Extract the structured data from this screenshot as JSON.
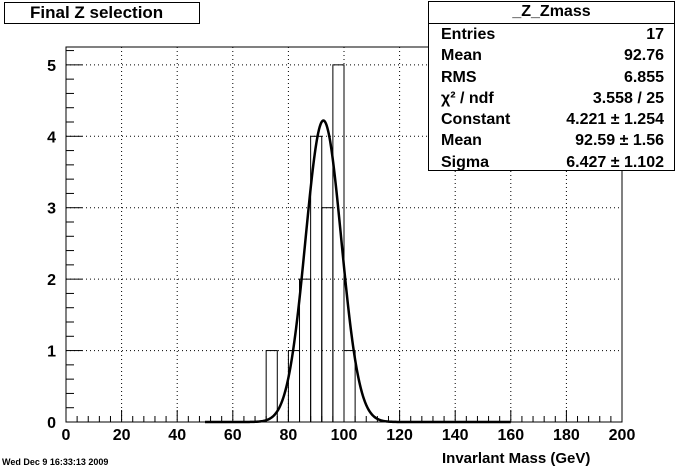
{
  "title_box": {
    "text": "Final Z selection"
  },
  "stats": {
    "title": "_Z_Zmass",
    "rows": [
      {
        "label": "Entries",
        "value": "17"
      },
      {
        "label": "Mean",
        "value": "92.76"
      },
      {
        "label": "RMS",
        "value": "6.855"
      },
      {
        "label": "χ² / ndf",
        "value": "3.558 / 25"
      },
      {
        "label": "Constant",
        "value": "4.221 ± 1.254"
      },
      {
        "label": "Mean",
        "value": "92.59 ± 1.56"
      },
      {
        "label": "Sigma",
        "value": "6.427 ± 1.102"
      }
    ]
  },
  "footer": {
    "date": "Wed Dec  9 16:33:13 2009"
  },
  "chart_data": {
    "type": "bar",
    "style": "histogram",
    "title": "Final Z selection",
    "xlabel": "Invarlant Mass (GeV)",
    "ylabel": "",
    "xlim": [
      0,
      200
    ],
    "ylim": [
      0,
      5.25
    ],
    "xticks": [
      0,
      20,
      40,
      60,
      80,
      100,
      120,
      140,
      160,
      180,
      200
    ],
    "yticks": [
      0,
      1,
      2,
      3,
      4,
      5
    ],
    "grid": true,
    "bins": [
      {
        "x0": 72,
        "x1": 76,
        "value": 1
      },
      {
        "x0": 76,
        "x1": 80,
        "value": 0
      },
      {
        "x0": 80,
        "x1": 84,
        "value": 1
      },
      {
        "x0": 84,
        "x1": 88,
        "value": 2
      },
      {
        "x0": 88,
        "x1": 92,
        "value": 4
      },
      {
        "x0": 92,
        "x1": 96,
        "value": 3
      },
      {
        "x0": 96,
        "x1": 100,
        "value": 5
      },
      {
        "x0": 100,
        "x1": 104,
        "value": 1
      }
    ],
    "fit": {
      "constant": 4.221,
      "mean": 92.59,
      "sigma": 6.427,
      "x_range": [
        50,
        160
      ]
    },
    "legend": "top-right"
  }
}
